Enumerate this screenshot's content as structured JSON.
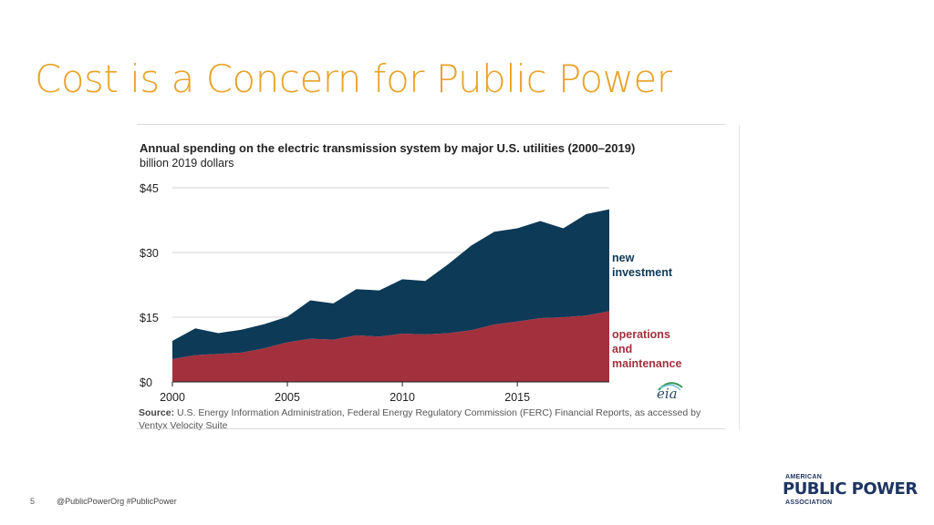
{
  "slide": {
    "title": "Cost is a Concern for Public Power",
    "page_number": "5",
    "social_handle": "@PublicPowerOrg #PublicPower"
  },
  "logo": {
    "top": "AMERICAN",
    "main": "PUBLIC POWER",
    "bottom": "ASSOCIATION"
  },
  "colors": {
    "title": "#e9a32a",
    "new_investment": "#0d3a57",
    "operations_maintenance": "#a3303d"
  },
  "chart_data": {
    "type": "area",
    "title": "Annual spending on the electric transmission system by major U.S. utilities (2000–2019)",
    "subtitle": "billion 2019 dollars",
    "stacked": true,
    "x": [
      2000,
      2001,
      2002,
      2003,
      2004,
      2005,
      2006,
      2007,
      2008,
      2009,
      2010,
      2011,
      2012,
      2013,
      2014,
      2015,
      2016,
      2017,
      2018,
      2019
    ],
    "xticks": [
      2000,
      2005,
      2010,
      2015
    ],
    "xtick_labels": [
      "2000",
      "2005",
      "2010",
      "2015"
    ],
    "ylim": [
      0,
      45
    ],
    "yticks": [
      0,
      15,
      30,
      45
    ],
    "ytick_labels": [
      "$0",
      "$15",
      "$30",
      "$45"
    ],
    "series": [
      {
        "name": "operations and maintenance",
        "label_lines": [
          "operations",
          "and",
          "maintenance"
        ],
        "color": "#a3303d",
        "values": [
          5.3,
          6.2,
          6.5,
          6.8,
          7.8,
          9.2,
          10.0,
          9.8,
          10.8,
          10.5,
          11.2,
          11.0,
          11.3,
          12.0,
          13.3,
          14.0,
          14.8,
          15.0,
          15.4,
          16.4
        ]
      },
      {
        "name": "new investment",
        "label_lines": [
          "new",
          "investment"
        ],
        "color": "#0d3a57",
        "values": [
          4.2,
          6.2,
          4.8,
          5.3,
          5.6,
          5.9,
          8.9,
          8.4,
          10.7,
          10.7,
          12.6,
          12.4,
          16.0,
          19.6,
          21.5,
          21.6,
          22.5,
          20.6,
          23.5,
          23.6
        ]
      }
    ],
    "source_label": "Source:",
    "source": "U.S. Energy Information Administration, Federal Energy Regulatory Commission (FERC) Financial Reports, as accessed by Ventyx Velocity Suite",
    "brand": "eia"
  }
}
